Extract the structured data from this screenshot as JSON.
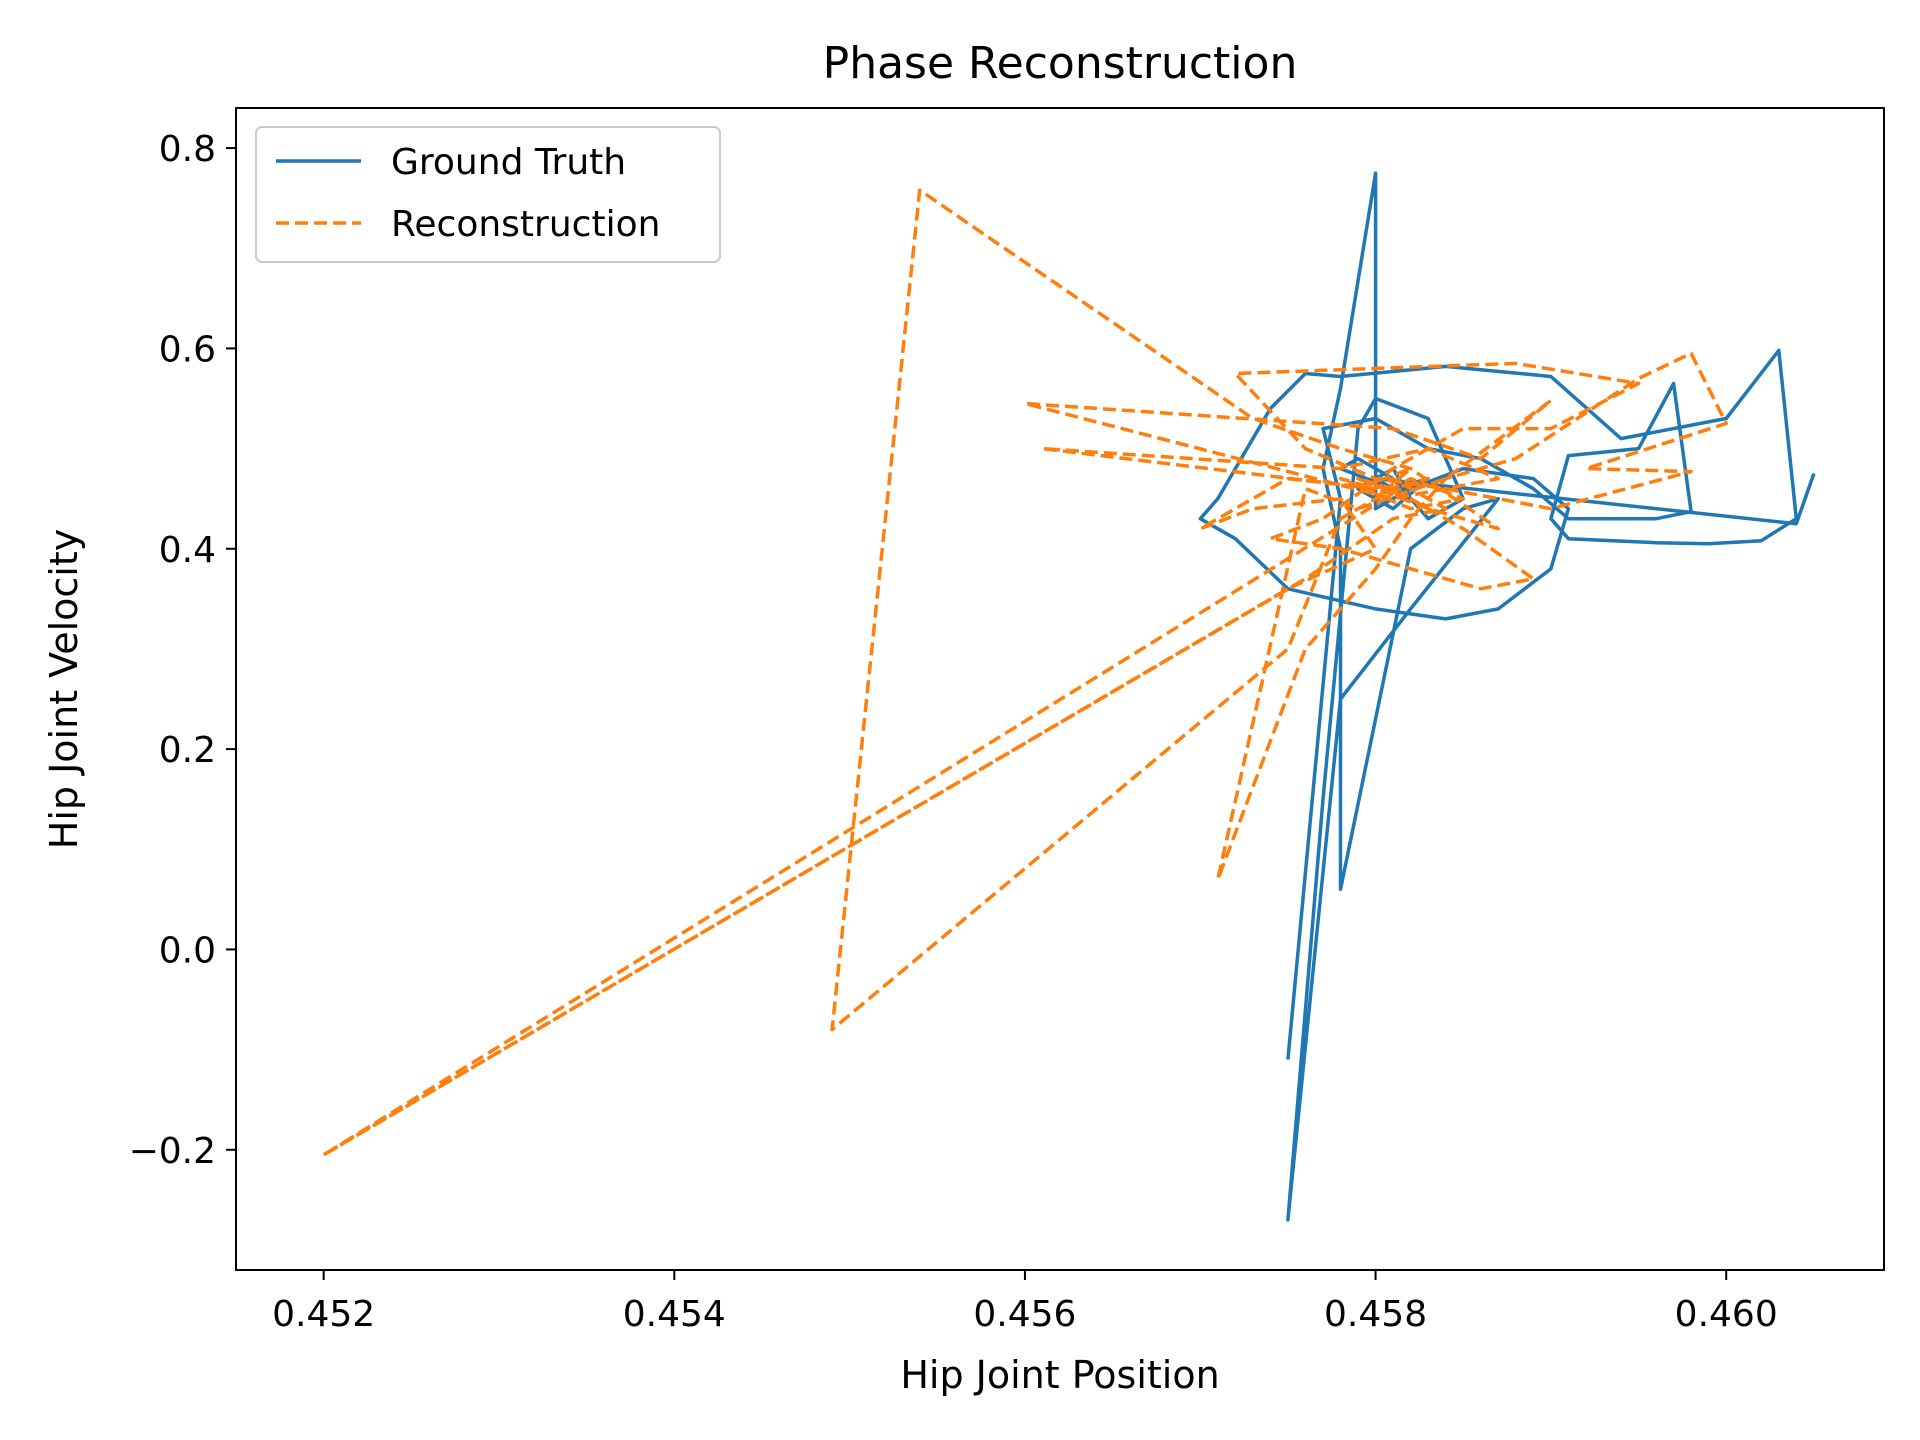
{
  "chart_data": {
    "type": "line",
    "title": "Phase Reconstruction",
    "xlabel": "Hip Joint Position",
    "ylabel": "Hip Joint Velocity",
    "xlim": [
      0.4515,
      0.4609
    ],
    "ylim": [
      -0.32,
      0.84
    ],
    "xticks": [
      0.452,
      0.454,
      0.456,
      0.458,
      0.46
    ],
    "xtick_labels": [
      "0.452",
      "0.454",
      "0.456",
      "0.458",
      "0.460"
    ],
    "yticks": [
      -0.2,
      0.0,
      0.2,
      0.4,
      0.6,
      0.8
    ],
    "ytick_labels": [
      "−0.2",
      "0.0",
      "0.2",
      "0.4",
      "0.6",
      "0.8"
    ],
    "grid": false,
    "legend_position": "top-left",
    "colors": {
      "ground_truth": "#1f77b4",
      "reconstruction": "#ff7f0e"
    },
    "series": [
      {
        "name": "Ground Truth",
        "style": "solid",
        "color": "#1f77b4",
        "points": [
          [
            0.4575,
            -0.11
          ],
          [
            0.4578,
            0.45
          ],
          [
            0.4577,
            0.52
          ],
          [
            0.458,
            0.53
          ],
          [
            0.4583,
            0.5
          ],
          [
            0.4586,
            0.49
          ],
          [
            0.4589,
            0.46
          ],
          [
            0.4591,
            0.43
          ],
          [
            0.4596,
            0.43
          ],
          [
            0.4598,
            0.437
          ],
          [
            0.4597,
            0.565
          ],
          [
            0.4595,
            0.5
          ],
          [
            0.4591,
            0.493
          ],
          [
            0.459,
            0.43
          ],
          [
            0.4591,
            0.41
          ],
          [
            0.4596,
            0.406
          ],
          [
            0.4599,
            0.405
          ],
          [
            0.4602,
            0.408
          ],
          [
            0.4604,
            0.43
          ],
          [
            0.4603,
            0.598
          ],
          [
            0.46,
            0.53
          ],
          [
            0.4594,
            0.51
          ],
          [
            0.459,
            0.572
          ],
          [
            0.4584,
            0.582
          ],
          [
            0.4578,
            0.572
          ],
          [
            0.4576,
            0.575
          ],
          [
            0.4574,
            0.54
          ],
          [
            0.4571,
            0.45
          ],
          [
            0.457,
            0.43
          ],
          [
            0.4572,
            0.41
          ],
          [
            0.4575,
            0.36
          ],
          [
            0.458,
            0.34
          ],
          [
            0.4584,
            0.33
          ],
          [
            0.4587,
            0.34
          ],
          [
            0.459,
            0.38
          ],
          [
            0.4591,
            0.44
          ],
          [
            0.4589,
            0.47
          ],
          [
            0.4585,
            0.48
          ],
          [
            0.4582,
            0.46
          ],
          [
            0.458,
            0.44
          ],
          [
            0.458,
            0.775
          ],
          [
            0.4578,
            0.56
          ],
          [
            0.4577,
            0.48
          ],
          [
            0.4578,
            0.4
          ],
          [
            0.4578,
            0.06
          ],
          [
            0.4582,
            0.4
          ],
          [
            0.4585,
            0.44
          ],
          [
            0.4587,
            0.45
          ],
          [
            0.4582,
            0.34
          ],
          [
            0.4578,
            0.25
          ],
          [
            0.4575,
            -0.27
          ],
          [
            0.4577,
            0.15
          ],
          [
            0.4579,
            0.52
          ],
          [
            0.458,
            0.55
          ],
          [
            0.4583,
            0.53
          ],
          [
            0.4585,
            0.45
          ],
          [
            0.4583,
            0.43
          ],
          [
            0.4581,
            0.47
          ],
          [
            0.4579,
            0.49
          ],
          [
            0.4578,
            0.48
          ],
          [
            0.4581,
            0.46
          ],
          [
            0.4583,
            0.47
          ],
          [
            0.4581,
            0.44
          ],
          [
            0.4579,
            0.46
          ],
          [
            0.4581,
            0.48
          ],
          [
            0.4582,
            0.45
          ],
          [
            0.458,
            0.47
          ],
          [
            0.4604,
            0.425
          ],
          [
            0.4605,
            0.475
          ]
        ]
      },
      {
        "name": "Reconstruction",
        "style": "dashed",
        "color": "#ff7f0e",
        "points": [
          [
            0.452,
            -0.205
          ],
          [
            0.4575,
            0.36
          ],
          [
            0.458,
            0.4
          ],
          [
            0.4578,
            0.45
          ],
          [
            0.4573,
            0.44
          ],
          [
            0.457,
            0.42
          ],
          [
            0.4575,
            0.47
          ],
          [
            0.458,
            0.46
          ],
          [
            0.4583,
            0.44
          ],
          [
            0.4587,
            0.42
          ],
          [
            0.4582,
            0.48
          ],
          [
            0.4578,
            0.5
          ],
          [
            0.4573,
            0.53
          ],
          [
            0.4554,
            0.758
          ],
          [
            0.4549,
            -0.08
          ],
          [
            0.4575,
            0.3
          ],
          [
            0.4578,
            0.43
          ],
          [
            0.4582,
            0.47
          ],
          [
            0.4585,
            0.45
          ],
          [
            0.4582,
            0.44
          ],
          [
            0.4578,
            0.47
          ],
          [
            0.458,
            0.46
          ],
          [
            0.4561,
            0.5
          ],
          [
            0.4578,
            0.48
          ],
          [
            0.4583,
            0.5
          ],
          [
            0.4587,
            0.47
          ],
          [
            0.4581,
            0.45
          ],
          [
            0.456,
            0.545
          ],
          [
            0.4581,
            0.52
          ],
          [
            0.4586,
            0.49
          ],
          [
            0.459,
            0.548
          ],
          [
            0.4584,
            0.47
          ],
          [
            0.4579,
            0.44
          ],
          [
            0.4576,
            0.46
          ],
          [
            0.4571,
            0.07
          ],
          [
            0.4576,
            0.3
          ],
          [
            0.458,
            0.38
          ],
          [
            0.4582,
            0.43
          ],
          [
            0.4584,
            0.47
          ],
          [
            0.4588,
            0.49
          ],
          [
            0.4595,
            0.57
          ],
          [
            0.4598,
            0.595
          ],
          [
            0.46,
            0.525
          ],
          [
            0.4592,
            0.48
          ],
          [
            0.4598,
            0.477
          ],
          [
            0.459,
            0.44
          ],
          [
            0.4584,
            0.46
          ],
          [
            0.458,
            0.47
          ],
          [
            0.4576,
            0.5
          ],
          [
            0.4572,
            0.575
          ],
          [
            0.4588,
            0.585
          ],
          [
            0.4595,
            0.565
          ],
          [
            0.459,
            0.52
          ],
          [
            0.4585,
            0.52
          ],
          [
            0.4581,
            0.48
          ],
          [
            0.4577,
            0.43
          ],
          [
            0.4574,
            0.41
          ],
          [
            0.4578,
            0.4
          ],
          [
            0.4582,
            0.38
          ],
          [
            0.4586,
            0.36
          ],
          [
            0.4589,
            0.37
          ],
          [
            0.4585,
            0.42
          ],
          [
            0.4582,
            0.45
          ],
          [
            0.4579,
            0.47
          ],
          [
            0.4581,
            0.46
          ],
          [
            0.4583,
            0.47
          ],
          [
            0.458,
            0.45
          ],
          [
            0.4582,
            0.48
          ],
          [
            0.4579,
            0.46
          ],
          [
            0.4581,
            0.455
          ],
          [
            0.452,
            -0.205
          ],
          [
            0.4576,
            0.37
          ],
          [
            0.4581,
            0.43
          ],
          [
            0.4584,
            0.44
          ],
          [
            0.4581,
            0.47
          ],
          [
            0.458,
            0.46
          ]
        ]
      }
    ]
  }
}
